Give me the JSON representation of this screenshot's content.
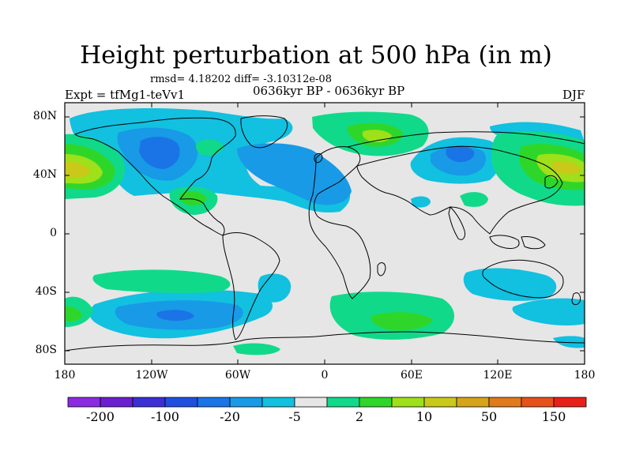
{
  "title": "Height perturbation at 500 hPa (in m)",
  "rmsd_line": "rmsd= 4.18202 diff= -3.10312e-08",
  "experiment": "Expt = tfMg1-teVv1",
  "period": "0636kyr BP - 0636kyr BP",
  "season": "DJF",
  "lat_ticks": [
    "80N",
    "40N",
    "0",
    "40S",
    "80S"
  ],
  "lon_ticks": [
    "180",
    "120W",
    "60W",
    "0",
    "60E",
    "120E",
    "180"
  ],
  "colorbar": {
    "labels": [
      "-200",
      "-100",
      "-20",
      "-5",
      "2",
      "10",
      "50",
      "150"
    ],
    "colors": [
      "#8a2be2",
      "#6a1fd0",
      "#3c2fd6",
      "#1f4fe0",
      "#1a74e6",
      "#189ae6",
      "#12c0e0",
      "#e6e6e6",
      "#11d98a",
      "#2fd62a",
      "#9ee01a",
      "#c9c91a",
      "#d6a41a",
      "#e07a1a",
      "#e6521a",
      "#e8201a"
    ]
  },
  "colors": {
    "background": "#e6e6e6",
    "land_outline": "#000000"
  }
}
